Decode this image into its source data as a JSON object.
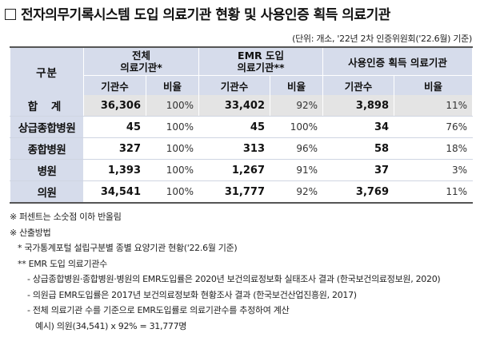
{
  "title": "전자의무기록시스템 도입 의료기관 현황 및 사용인증 획득 의료기관",
  "unit_note": "(단위: 개소, '22년 2차 인증위원회('22.6월) 기준)",
  "table": {
    "gubun": "구분",
    "groups": [
      {
        "line1": "전체",
        "line2": "의료기관*"
      },
      {
        "line1": "EMR 도입",
        "line2": "의료기관**"
      },
      {
        "line1": "사용인증 획득 의료기관",
        "line2": ""
      }
    ],
    "sub_headers": [
      "기관수",
      "비율",
      "기관수",
      "비율",
      "기관수",
      "비율"
    ],
    "rows": [
      {
        "label": "합 계",
        "values": [
          "36,306",
          "100%",
          "33,402",
          "92%",
          "3,898",
          "11%"
        ]
      },
      {
        "label": "상급종합병원",
        "values": [
          "45",
          "100%",
          "45",
          "100%",
          "34",
          "76%"
        ]
      },
      {
        "label": "종합병원",
        "values": [
          "327",
          "100%",
          "313",
          "96%",
          "58",
          "18%"
        ]
      },
      {
        "label": "병원",
        "values": [
          "1,393",
          "100%",
          "1,267",
          "91%",
          "37",
          "3%"
        ]
      },
      {
        "label": "의원",
        "values": [
          "34,541",
          "100%",
          "31,777",
          "92%",
          "3,769",
          "11%"
        ]
      }
    ]
  },
  "notes": [
    "※ 퍼센트는 소숫점 이하 반올림",
    "※ 산출방법",
    "* 국가통계포털 설립구분별 종별 요양기관 현황('22.6월 기준)",
    "** EMR 도입 의료기관수",
    "- 상급종합병원·종합병원·병원의 EMR도입률은 2020년 보건의료정보화 실태조사 결과 (한국보건의료정보원, 2020)",
    "- 의원급 EMR도입률은 2017년 보건의료정보화 현황조사 결과 (한국보건산업진흥원, 2017)",
    "- 전체 의료기관 수를 기준으로 EMR도입률로 의료기관수를 추정하여 계산",
    "예시) 의원(34,541) x 92% = 31,777명"
  ]
}
